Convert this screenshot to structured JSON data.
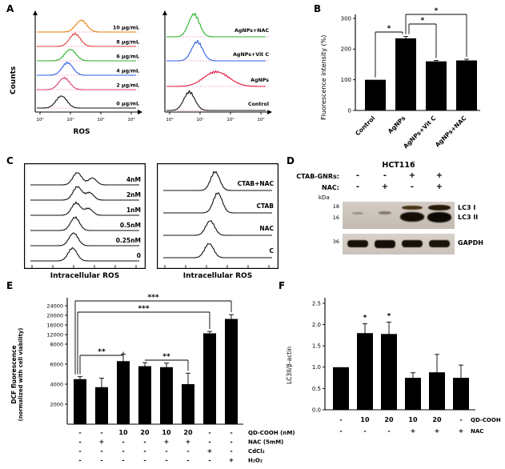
{
  "panels": {
    "A": {
      "letter": "A"
    },
    "B": {
      "letter": "B"
    },
    "C": {
      "letter": "C"
    },
    "D": {
      "letter": "D",
      "title": "HCT116",
      "rows": [
        {
          "label": "CTAB-GNRs:",
          "values": [
            "-",
            "-",
            "+",
            "+"
          ]
        },
        {
          "label": "NAC:",
          "values": [
            "-",
            "+",
            "-",
            "+"
          ]
        }
      ],
      "kda_label": "kDa",
      "blot1_markers": [
        "18",
        "16"
      ],
      "blot1_band_labels": [
        "LC3 I",
        "LC3 II"
      ],
      "blot2_marker": "36",
      "blot2_label": "GAPDH"
    },
    "E": {
      "letter": "E"
    },
    "F": {
      "letter": "F"
    }
  },
  "chart_data": [
    {
      "id": "A_left",
      "type": "flow-histogram-stack",
      "xlabel": "ROS",
      "ylabel": "Counts",
      "xticks": [
        "10⁰",
        "10¹",
        "10²",
        "10³"
      ],
      "rows": [
        {
          "label": "10 µg/mL",
          "color": "#e8820c",
          "peak_log": 1.35
        },
        {
          "label": "8 µg/mL",
          "color": "#e23b3b",
          "peak_log": 1.15
        },
        {
          "label": "6 µg/mL",
          "color": "#27b327",
          "peak_log": 1.0
        },
        {
          "label": "4 µg/mL",
          "color": "#2f5fe0",
          "peak_log": 0.9
        },
        {
          "label": "2 µg/mL",
          "color": "#e03b6a",
          "peak_log": 0.8
        },
        {
          "label": "0 µg/mL",
          "color": "#111111",
          "peak_log": 0.7
        }
      ]
    },
    {
      "id": "A_right",
      "type": "flow-histogram-stack",
      "xlabel": "",
      "ylabel": "",
      "xticks": [
        "10⁰",
        "10¹",
        "10²",
        "10³"
      ],
      "rows": [
        {
          "label": "AgNPs+NAC",
          "color": "#27b327",
          "peak_log": 0.8
        },
        {
          "label": "AgNPs+Vit C",
          "color": "#2f5fe0",
          "peak_log": 0.9
        },
        {
          "label": "AgNPs",
          "color": "#e01840",
          "peak_log": 1.55,
          "width_log": 0.4
        },
        {
          "label": "Control",
          "color": "#111111",
          "peak_log": 0.65
        }
      ]
    },
    {
      "id": "B",
      "type": "bar",
      "ylabel": "Fluorescence intensity (%)",
      "ylim": [
        0,
        300
      ],
      "yticks": [
        0,
        100,
        200,
        300
      ],
      "categories": [
        "Control",
        "AgNPs",
        "AgNPs+Vit C",
        "AgNPs+NAC"
      ],
      "values": [
        100,
        235,
        160,
        163
      ],
      "errors": [
        0,
        6,
        3,
        4
      ],
      "bar_color": "#000000",
      "significance": [
        {
          "from": 0,
          "to": 1,
          "label": "*"
        },
        {
          "from": 1,
          "to": 2,
          "label": "*"
        },
        {
          "from": 1,
          "to": 3,
          "label": "*"
        }
      ]
    },
    {
      "id": "C_left",
      "type": "flow-histogram-stack",
      "xlabel": "Intracellular ROS",
      "rows": [
        {
          "label": "4nM",
          "color": "#111111",
          "peak_log": 1.7,
          "peak2_log": 2.3
        },
        {
          "label": "2nM",
          "color": "#111111",
          "peak_log": 1.7,
          "peak2_log": 2.2
        },
        {
          "label": "1nM",
          "color": "#111111",
          "peak_log": 1.65,
          "peak2_log": 2.15
        },
        {
          "label": "0.5nM",
          "color": "#111111",
          "peak_log": 1.6
        },
        {
          "label": "0.25nM",
          "color": "#111111",
          "peak_log": 1.55
        },
        {
          "label": "0",
          "color": "#111111",
          "peak_log": 1.5
        }
      ]
    },
    {
      "id": "C_right",
      "type": "flow-histogram-stack",
      "xlabel": "Intracellular ROS",
      "rows": [
        {
          "label": "CTAB+NAC",
          "color": "#111111",
          "peak_log": 1.9
        },
        {
          "label": "CTAB",
          "color": "#111111",
          "peak_log": 2.0
        },
        {
          "label": "NAC",
          "color": "#111111",
          "peak_log": 1.7
        },
        {
          "label": "C",
          "color": "#111111",
          "peak_log": 1.65
        }
      ]
    },
    {
      "id": "E",
      "type": "bar",
      "ylabel_line1": "DCF fluorescence",
      "ylabel_line2": "(normalized with cell viability)",
      "yticks_lower": [
        2000,
        4000,
        6000,
        8000
      ],
      "yticks_upper": [
        12000,
        16000,
        20000,
        24000
      ],
      "values": [
        4500,
        3700,
        6300,
        5800,
        5700,
        4000,
        12500,
        18500
      ],
      "errors": [
        250,
        900,
        700,
        350,
        400,
        1100,
        800,
        1800
      ],
      "bar_color": "#000000",
      "significance": [
        {
          "from": 0,
          "to": 2,
          "label": "**"
        },
        {
          "from": 3,
          "to": 5,
          "label": "**"
        },
        {
          "from": 0,
          "to": 6,
          "label": "***"
        },
        {
          "from": 0,
          "to": 7,
          "label": "***"
        }
      ],
      "condition_rows": [
        {
          "label": "QD-COOH (nM)",
          "values": [
            "-",
            "-",
            "10",
            "20",
            "10",
            "20",
            "-",
            "-"
          ]
        },
        {
          "label": "NAC (5mM)",
          "values": [
            "-",
            "+",
            "-",
            "-",
            "+",
            "+",
            "-",
            "-"
          ]
        },
        {
          "label": "CdCl₂",
          "values": [
            "-",
            "-",
            "-",
            "-",
            "-",
            "-",
            "+",
            "-"
          ]
        },
        {
          "label": "H₂O₂",
          "values": [
            "-",
            "-",
            "-",
            "-",
            "-",
            "-",
            "-",
            "+"
          ]
        }
      ]
    },
    {
      "id": "F",
      "type": "bar",
      "ylabel": "LC3II/β-actin",
      "yticks": [
        0,
        0.5,
        1,
        1.5,
        2,
        2.5
      ],
      "ytick_labels": [
        "0.0",
        "0.5",
        "1.0",
        "1.5",
        "2.0",
        "2.5"
      ],
      "values": [
        1.0,
        1.8,
        1.78,
        0.75,
        0.88,
        0.75
      ],
      "errors": [
        0,
        0.22,
        0.28,
        0.12,
        0.42,
        0.3
      ],
      "bar_color": "#000000",
      "stars": [
        {
          "index": 1,
          "label": "*"
        },
        {
          "index": 2,
          "label": "*"
        }
      ],
      "condition_rows": [
        {
          "label": "QD-COOH",
          "values": [
            "-",
            "10",
            "20",
            "10",
            "20",
            "-"
          ]
        },
        {
          "label": "NAC",
          "values": [
            "-",
            "-",
            "-",
            "+",
            "+",
            "+"
          ]
        }
      ]
    }
  ]
}
